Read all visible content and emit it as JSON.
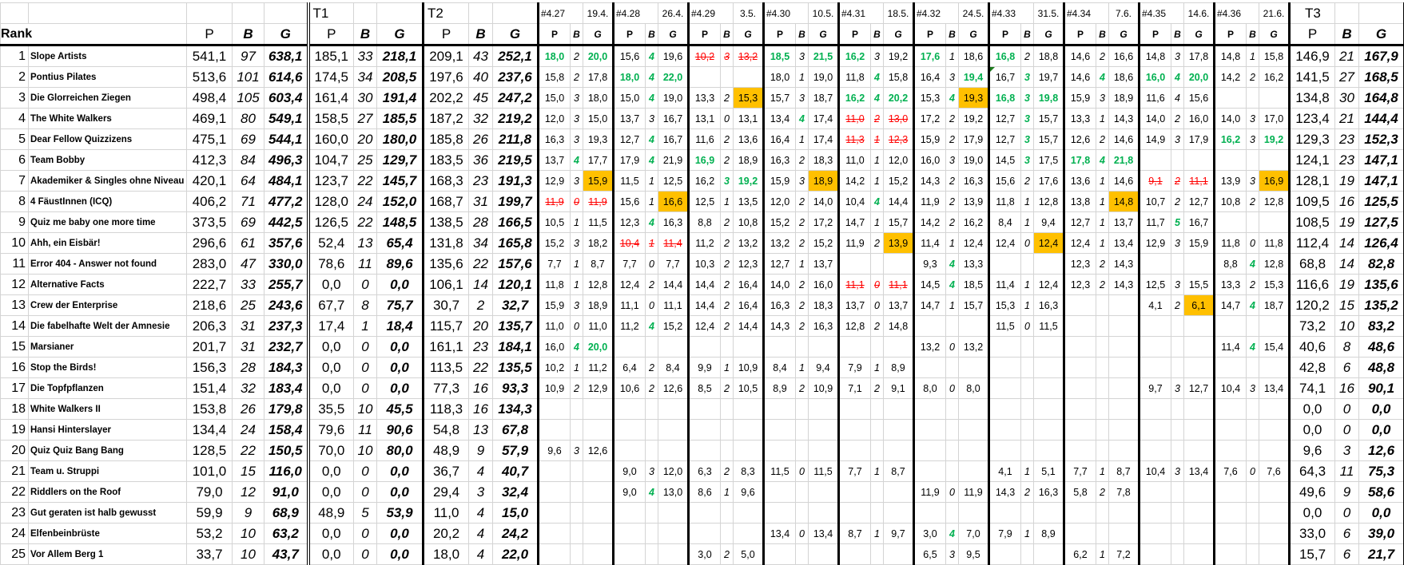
{
  "header": {
    "rank_label": "Rank",
    "col_p": "P",
    "col_b": "B",
    "col_g": "G",
    "t1": "T1",
    "t2": "T2",
    "t3": "T3",
    "quizzes": [
      {
        "id": "#4.27",
        "date": "19.4."
      },
      {
        "id": "#4.28",
        "date": "26.4."
      },
      {
        "id": "#4.29",
        "date": "3.5."
      },
      {
        "id": "#4.30",
        "date": "10.5."
      },
      {
        "id": "#4.31",
        "date": "18.5."
      },
      {
        "id": "#4.32",
        "date": "24.5."
      },
      {
        "id": "#4.33",
        "date": "31.5."
      },
      {
        "id": "#4.34",
        "date": "7.6."
      },
      {
        "id": "#4.35",
        "date": "14.6."
      },
      {
        "id": "#4.36",
        "date": "21.6."
      }
    ]
  },
  "colors": {
    "green": "#00b050",
    "red_strike": "#ff0000",
    "highlight": "#ffc000"
  },
  "cell_style_codes": {
    "g": "green",
    "r": "red strikethrough",
    "h": "highlighted"
  },
  "rows": [
    {
      "rank": "1",
      "name": "Slope Artists",
      "total": [
        "541,1",
        "97",
        "638,1"
      ],
      "t1": [
        "185,1",
        "33",
        "218,1"
      ],
      "t2": [
        "209,1",
        "43",
        "252,1"
      ],
      "q": [
        "18,0~g|2|20,0~g",
        "15,6|4~g|19,6",
        "10,2~r|3~r|13,2~r",
        "18,5~g|3|21,5~g",
        "16,2~g|3|19,2",
        "17,6~g|1|18,6",
        "16,8~g|2|18,8",
        "14,6|2|16,6",
        "14,8|3|17,8",
        "14,8|1|15,8"
      ],
      "t3": [
        "146,9",
        "21",
        "167,9"
      ]
    },
    {
      "rank": "2",
      "name": "Pontius Pilates",
      "total": [
        "513,6",
        "101",
        "614,6"
      ],
      "t1": [
        "174,5",
        "34",
        "208,5"
      ],
      "t2": [
        "197,6",
        "40",
        "237,6"
      ],
      "q": [
        "15,8|2|17,8",
        "18,0~g|4~g|22,0~g",
        "",
        "18,0|1|19,0",
        "11,8|4~g|15,8",
        "16,4|3|19,4~g",
        "16,7~n|3~g|19,7",
        "14,6|4~g|18,6",
        "16,0~g|4~g|20,0~g",
        "14,2|2|16,2"
      ],
      "t3": [
        "141,5",
        "27",
        "168,5"
      ]
    },
    {
      "rank": "3",
      "name": "Die Glorreichen Ziegen",
      "total": [
        "498,4",
        "105",
        "603,4"
      ],
      "t1": [
        "161,4",
        "30",
        "191,4"
      ],
      "t2": [
        "202,2",
        "45",
        "247,2"
      ],
      "q": [
        "15,0|3|18,0",
        "15,0|4~g|19,0",
        "13,3|2|15,3~h",
        "15,7|3|18,7",
        "16,2~g|4~g|20,2~g",
        "15,3|4~g|19,3~h",
        "16,8~g|3~g|19,8~g",
        "15,9|3|18,9",
        "11,6|4|15,6",
        ""
      ],
      "t3": [
        "134,8",
        "30",
        "164,8"
      ]
    },
    {
      "rank": "4",
      "name": "The White Walkers",
      "total": [
        "469,1",
        "80",
        "549,1"
      ],
      "t1": [
        "158,5",
        "27",
        "185,5"
      ],
      "t2": [
        "187,2",
        "32",
        "219,2"
      ],
      "q": [
        "12,0|3|15,0",
        "13,7|3|16,7",
        "13,1|0|13,1",
        "13,4|4~g|17,4",
        "11,0~r|2~r|13,0~r",
        "17,2|2|19,2",
        "12,7|3~g|15,7",
        "13,3|1|14,3",
        "14,0|2|16,0",
        "14,0|3|17,0"
      ],
      "t3": [
        "123,4",
        "21",
        "144,4"
      ]
    },
    {
      "rank": "5",
      "name": "Dear Fellow Quizzizens",
      "total": [
        "475,1",
        "69",
        "544,1"
      ],
      "t1": [
        "160,0",
        "20",
        "180,0"
      ],
      "t2": [
        "185,8",
        "26",
        "211,8"
      ],
      "q": [
        "16,3|3|19,3",
        "12,7|4~g|16,7",
        "11,6|2|13,6",
        "16,4|1|17,4",
        "11,3~r|1~r|12,3~r",
        "15,9|2|17,9",
        "12,7|3~g|15,7",
        "12,6|2|14,6",
        "14,9|3|17,9",
        "16,2~g|3|19,2~g"
      ],
      "t3": [
        "129,3",
        "23",
        "152,3"
      ]
    },
    {
      "rank": "6",
      "name": "Team Bobby",
      "total": [
        "412,3",
        "84",
        "496,3"
      ],
      "t1": [
        "104,7",
        "25",
        "129,7"
      ],
      "t2": [
        "183,5",
        "36",
        "219,5"
      ],
      "q": [
        "13,7|4~g|17,7",
        "17,9|4~g|21,9",
        "16,9~g|2|18,9",
        "16,3|2|18,3",
        "11,0|1|12,0",
        "16,0|3|19,0",
        "14,5|3~g|17,5",
        "17,8~g|4~g|21,8~g",
        "",
        ""
      ],
      "t3": [
        "124,1",
        "23",
        "147,1"
      ]
    },
    {
      "rank": "7",
      "name": "Akademiker & Singles ohne Niveau",
      "total": [
        "420,1",
        "64",
        "484,1"
      ],
      "t1": [
        "123,7",
        "22",
        "145,7"
      ],
      "t2": [
        "168,3",
        "23",
        "191,3"
      ],
      "q": [
        "12,9|3|15,9~h",
        "11,5|1|12,5",
        "16,2|3~g|19,2~g",
        "15,9|3|18,9~h",
        "14,2|1|15,2",
        "14,3|2|16,3",
        "15,6|2|17,6",
        "13,6|1|14,6",
        "9,1~r|2~r|11,1~r",
        "13,9|3|16,9~h"
      ],
      "t3": [
        "128,1",
        "19",
        "147,1"
      ]
    },
    {
      "rank": "8",
      "name": "4 FäustInnen (ICQ)",
      "total": [
        "406,2",
        "71",
        "477,2"
      ],
      "t1": [
        "128,0",
        "24",
        "152,0"
      ],
      "t2": [
        "168,7",
        "31",
        "199,7"
      ],
      "q": [
        "11,9~r|0~r|11,9~r",
        "15,6|1|16,6~h",
        "12,5|1|13,5",
        "12,0|2|14,0",
        "10,4|4~g|14,4",
        "11,9|2|13,9",
        "11,8|1|12,8",
        "13,8|1|14,8~h",
        "10,7|2|12,7",
        "10,8|2|12,8"
      ],
      "t3": [
        "109,5",
        "16",
        "125,5"
      ]
    },
    {
      "rank": "9",
      "name": "Quiz me baby one more time",
      "total": [
        "373,5",
        "69",
        "442,5"
      ],
      "t1": [
        "126,5",
        "22",
        "148,5"
      ],
      "t2": [
        "138,5",
        "28",
        "166,5"
      ],
      "q": [
        "10,5|1|11,5",
        "12,3|4~g|16,3",
        "8,8|2|10,8",
        "15,2|2|17,2",
        "14,7|1|15,7",
        "14,2|2|16,2",
        "8,4|1|9,4",
        "12,7|1|13,7",
        "11,7|5~g|16,7",
        ""
      ],
      "t3": [
        "108,5",
        "19",
        "127,5"
      ]
    },
    {
      "rank": "10",
      "name": "Ahh, ein Eisbär!",
      "total": [
        "296,6",
        "61",
        "357,6"
      ],
      "t1": [
        "52,4",
        "13",
        "65,4"
      ],
      "t2": [
        "131,8",
        "34",
        "165,8"
      ],
      "q": [
        "15,2|3|18,2",
        "10,4~r|1~r|11,4~r",
        "11,2|2|13,2",
        "13,2|2|15,2",
        "11,9|2|13,9~h",
        "11,4|1|12,4",
        "12,4|0|12,4~h",
        "12,4|1|13,4",
        "12,9|3|15,9",
        "11,8|0|11,8"
      ],
      "t3": [
        "112,4",
        "14",
        "126,4"
      ]
    },
    {
      "rank": "11",
      "name": "Error 404 - Answer not found",
      "total": [
        "283,0",
        "47",
        "330,0"
      ],
      "t1": [
        "78,6",
        "11",
        "89,6"
      ],
      "t2": [
        "135,6",
        "22",
        "157,6"
      ],
      "q": [
        "7,7|1|8,7",
        "7,7|0|7,7",
        "10,3|2|12,3",
        "12,7|1|13,7",
        "",
        "9,3|4~g|13,3",
        "",
        "12,3|2|14,3",
        "",
        "8,8|4~g|12,8"
      ],
      "t3": [
        "68,8",
        "14",
        "82,8"
      ]
    },
    {
      "rank": "12",
      "name": "Alternative Facts",
      "total": [
        "222,7",
        "33",
        "255,7"
      ],
      "t1": [
        "0,0",
        "0",
        "0,0"
      ],
      "t2": [
        "106,1",
        "14",
        "120,1"
      ],
      "q": [
        "11,8|1|12,8",
        "12,4|2|14,4",
        "14,4|2|16,4",
        "14,0|2|16,0",
        "11,1~r|0~r|11,1~r",
        "14,5|4~g|18,5",
        "11,4|1|12,4",
        "12,3|2|14,3",
        "12,5|3|15,5",
        "13,3|2|15,3"
      ],
      "t3": [
        "116,6",
        "19",
        "135,6"
      ]
    },
    {
      "rank": "13",
      "name": "Crew der Enterprise",
      "total": [
        "218,6",
        "25",
        "243,6"
      ],
      "t1": [
        "67,7",
        "8",
        "75,7"
      ],
      "t2": [
        "30,7",
        "2",
        "32,7"
      ],
      "q": [
        "15,9|3|18,9",
        "11,1|0|11,1",
        "14,4|2|16,4",
        "16,3|2|18,3",
        "13,7|0|13,7",
        "14,7|1|15,7",
        "15,3|1|16,3",
        "",
        "4,1|2|6,1~h",
        "14,7|4~g|18,7"
      ],
      "t3": [
        "120,2",
        "15",
        "135,2"
      ]
    },
    {
      "rank": "14",
      "name": "Die fabelhafte Welt der Amnesie",
      "total": [
        "206,3",
        "31",
        "237,3"
      ],
      "t1": [
        "17,4",
        "1",
        "18,4"
      ],
      "t2": [
        "115,7",
        "20",
        "135,7"
      ],
      "q": [
        "11,0|0|11,0",
        "11,2|4~g|15,2",
        "12,4|2|14,4",
        "14,3|2|16,3",
        "12,8|2|14,8",
        "",
        "11,5|0|11,5",
        "",
        "",
        ""
      ],
      "t3": [
        "73,2",
        "10",
        "83,2"
      ]
    },
    {
      "rank": "15",
      "name": "Marsianer",
      "total": [
        "201,7",
        "31",
        "232,7"
      ],
      "t1": [
        "0,0",
        "0",
        "0,0"
      ],
      "t2": [
        "161,1",
        "23",
        "184,1"
      ],
      "q": [
        "16,0|4~g|20,0~g",
        "",
        "",
        "",
        "",
        "13,2|0|13,2",
        "",
        "",
        "",
        "11,4|4~g|15,4"
      ],
      "t3": [
        "40,6",
        "8",
        "48,6"
      ]
    },
    {
      "rank": "16",
      "name": "Stop the Birds!",
      "total": [
        "156,3",
        "28",
        "184,3"
      ],
      "t1": [
        "0,0",
        "0",
        "0,0"
      ],
      "t2": [
        "113,5",
        "22",
        "135,5"
      ],
      "q": [
        "10,2|1|11,2",
        "6,4|2|8,4",
        "9,9|1|10,9",
        "8,4|1|9,4",
        "7,9|1|8,9",
        "",
        "",
        "",
        "",
        ""
      ],
      "t3": [
        "42,8",
        "6",
        "48,8"
      ]
    },
    {
      "rank": "17",
      "name": "Die Topfpflanzen",
      "total": [
        "151,4",
        "32",
        "183,4"
      ],
      "t1": [
        "0,0",
        "0",
        "0,0"
      ],
      "t2": [
        "77,3",
        "16",
        "93,3"
      ],
      "q": [
        "10,9|2|12,9",
        "10,6|2|12,6",
        "8,5|2|10,5",
        "8,9|2|10,9",
        "7,1|2|9,1",
        "8,0|0|8,0",
        "",
        "",
        "9,7|3|12,7",
        "10,4|3|13,4"
      ],
      "t3": [
        "74,1",
        "16",
        "90,1"
      ]
    },
    {
      "rank": "18",
      "name": "White Walkers II",
      "total": [
        "153,8",
        "26",
        "179,8"
      ],
      "t1": [
        "35,5",
        "10",
        "45,5"
      ],
      "t2": [
        "118,3",
        "16",
        "134,3"
      ],
      "q": [
        "",
        "",
        "",
        "",
        "",
        "",
        "",
        "",
        "",
        ""
      ],
      "t3": [
        "0,0",
        "0",
        "0,0"
      ]
    },
    {
      "rank": "19",
      "name": "Hansi Hinterslayer",
      "total": [
        "134,4",
        "24",
        "158,4"
      ],
      "t1": [
        "79,6",
        "11",
        "90,6"
      ],
      "t2": [
        "54,8",
        "13",
        "67,8"
      ],
      "q": [
        "",
        "",
        "",
        "",
        "",
        "",
        "",
        "",
        "",
        ""
      ],
      "t3": [
        "0,0",
        "0",
        "0,0"
      ]
    },
    {
      "rank": "20",
      "name": "Quiz Quiz Bang Bang",
      "total": [
        "128,5",
        "22",
        "150,5"
      ],
      "t1": [
        "70,0",
        "10",
        "80,0"
      ],
      "t2": [
        "48,9",
        "9",
        "57,9"
      ],
      "q": [
        "9,6|3|12,6",
        "",
        "",
        "",
        "",
        "",
        "",
        "",
        "",
        ""
      ],
      "t3": [
        "9,6",
        "3",
        "12,6"
      ]
    },
    {
      "rank": "21",
      "name": "Team u. Struppi",
      "total": [
        "101,0",
        "15",
        "116,0"
      ],
      "t1": [
        "0,0",
        "0",
        "0,0"
      ],
      "t2": [
        "36,7",
        "4",
        "40,7"
      ],
      "q": [
        "",
        "9,0|3|12,0",
        "6,3|2|8,3",
        "11,5|0|11,5",
        "7,7|1|8,7",
        "",
        "4,1|1|5,1",
        "7,7|1|8,7",
        "10,4|3|13,4",
        "7,6|0|7,6"
      ],
      "t3": [
        "64,3",
        "11",
        "75,3"
      ]
    },
    {
      "rank": "22",
      "name": "Riddlers on the Roof",
      "total": [
        "79,0",
        "12",
        "91,0"
      ],
      "t1": [
        "0,0",
        "0",
        "0,0"
      ],
      "t2": [
        "29,4",
        "3",
        "32,4"
      ],
      "q": [
        "",
        "9,0|4~g|13,0",
        "8,6|1|9,6",
        "",
        "",
        "11,9|0|11,9",
        "14,3|2|16,3",
        "5,8|2|7,8",
        "",
        ""
      ],
      "t3": [
        "49,6",
        "9",
        "58,6"
      ]
    },
    {
      "rank": "23",
      "name": "Gut geraten ist halb gewusst",
      "total": [
        "59,9",
        "9",
        "68,9"
      ],
      "t1": [
        "48,9",
        "5",
        "53,9"
      ],
      "t2": [
        "11,0",
        "4",
        "15,0"
      ],
      "q": [
        "",
        "",
        "",
        "",
        "",
        "",
        "",
        "",
        "",
        ""
      ],
      "t3": [
        "0,0",
        "0",
        "0,0"
      ]
    },
    {
      "rank": "24",
      "name": "Elfenbeinbrüste",
      "total": [
        "53,2",
        "10",
        "63,2"
      ],
      "t1": [
        "0,0",
        "0",
        "0,0"
      ],
      "t2": [
        "20,2",
        "4",
        "24,2"
      ],
      "q": [
        "",
        "",
        "",
        "13,4|0|13,4",
        "8,7|1|9,7",
        "3,0|4~g|7,0",
        "7,9|1|8,9",
        "",
        "",
        ""
      ],
      "t3": [
        "33,0",
        "6",
        "39,0"
      ]
    },
    {
      "rank": "25",
      "name": "Vor Allem Berg 1",
      "total": [
        "33,7",
        "10",
        "43,7"
      ],
      "t1": [
        "0,0",
        "0",
        "0,0"
      ],
      "t2": [
        "18,0",
        "4",
        "22,0"
      ],
      "q": [
        "",
        "",
        "3,0|2|5,0",
        "",
        "",
        "6,5|3|9,5",
        "",
        "6,2|1|7,2",
        "",
        ""
      ],
      "t3": [
        "15,7",
        "6",
        "21,7"
      ]
    }
  ]
}
